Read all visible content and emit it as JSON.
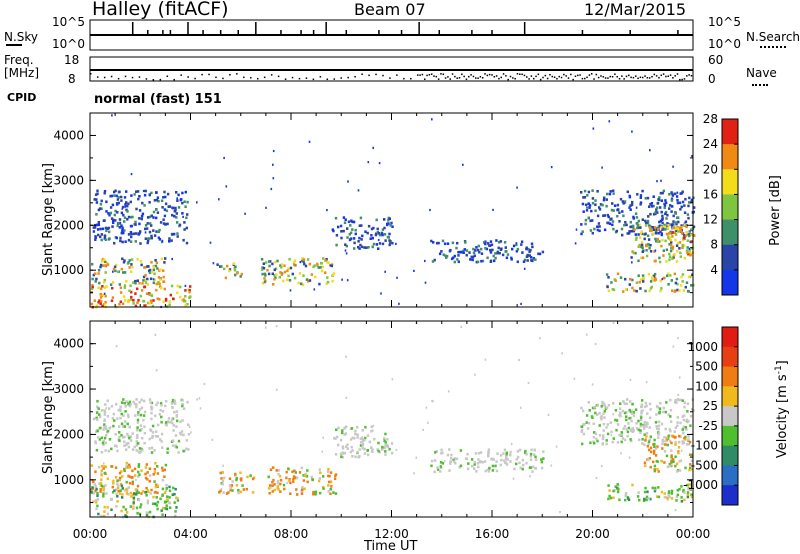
{
  "header": {
    "title": "Halley (fitACF)",
    "beam": "Beam 07",
    "date": "12/Mar/2015"
  },
  "sky_panel": {
    "left_label": "N.Sky",
    "left_ticks": [
      "10^5",
      "10^0"
    ],
    "right_label": "N.Search",
    "right_ticks": [
      "10^5",
      "10^0"
    ]
  },
  "freq_panel": {
    "left_label_1": "Freq.",
    "left_label_2": "[MHz]",
    "left_ticks": [
      "18",
      "8"
    ],
    "right_label": "Nave",
    "right_ticks": [
      "60",
      "0"
    ]
  },
  "cpid": {
    "label": "CPID",
    "value": "normal (fast) 151"
  },
  "chart_data": [
    {
      "type": "heatmap",
      "name_panel": "power",
      "xlabel": "",
      "ylabel": "Slant Range [km]",
      "xlim": [
        0,
        24
      ],
      "ylim": [
        180,
        4500
      ],
      "x_ticks": [
        "00:00",
        "04:00",
        "08:00",
        "12:00",
        "16:00",
        "20:00",
        "00:00"
      ],
      "y_ticks": [
        "1000",
        "2000",
        "3000",
        "4000"
      ],
      "y_tick_values": [
        1000,
        2000,
        3000,
        4000
      ],
      "colorbar": {
        "label": "Power [dB]",
        "ticks": [
          "4",
          "8",
          "12",
          "16",
          "20",
          "24",
          "28"
        ],
        "range": [
          0,
          30
        ],
        "colors": [
          "#1535e8",
          "#2a45a8",
          "#3f8f6a",
          "#7fc640",
          "#f2dc1c",
          "#f08a14",
          "#e02214"
        ]
      },
      "regions": [
        {
          "t0": 0.1,
          "t1": 3.9,
          "r0": 1620,
          "r1": 2800,
          "level": "low"
        },
        {
          "t0": 0.0,
          "t1": 3.0,
          "r0": 700,
          "r1": 1300,
          "level": "mid"
        },
        {
          "t0": 0.0,
          "t1": 4.0,
          "r0": 200,
          "r1": 700,
          "level": "high"
        },
        {
          "t0": 5.0,
          "t1": 6.0,
          "r0": 850,
          "r1": 1200,
          "level": "mid"
        },
        {
          "t0": 6.8,
          "t1": 9.7,
          "r0": 700,
          "r1": 1300,
          "level": "mid"
        },
        {
          "t0": 9.6,
          "t1": 12.0,
          "r0": 1500,
          "r1": 2200,
          "level": "low"
        },
        {
          "t0": 13.5,
          "t1": 18.0,
          "r0": 1200,
          "r1": 1700,
          "level": "low"
        },
        {
          "t0": 19.5,
          "t1": 24.0,
          "r0": 1800,
          "r1": 2800,
          "level": "low"
        },
        {
          "t0": 21.5,
          "t1": 24.0,
          "r0": 1200,
          "r1": 2100,
          "level": "mid"
        },
        {
          "t0": 23.0,
          "t1": 24.0,
          "r0": 1200,
          "r1": 2000,
          "level": "high"
        },
        {
          "t0": 20.5,
          "t1": 24.0,
          "r0": 550,
          "r1": 950,
          "level": "mid"
        }
      ]
    },
    {
      "type": "heatmap",
      "name_panel": "velocity",
      "xlabel": "Time UT",
      "ylabel": "Slant Range [km]",
      "xlim": [
        0,
        24
      ],
      "ylim": [
        180,
        4500
      ],
      "x_ticks": [
        "00:00",
        "04:00",
        "08:00",
        "12:00",
        "16:00",
        "20:00",
        "00:00"
      ],
      "y_ticks": [
        "1000",
        "2000",
        "3000",
        "4000"
      ],
      "y_tick_values": [
        1000,
        2000,
        3000,
        4000
      ],
      "colorbar": {
        "label": "Velocity [m s-1]",
        "label_main": "Velocity [m s",
        "label_sup": "-1",
        "label_end": "]",
        "ticks": [
          "1000",
          "500",
          "100",
          "25",
          "-25",
          "-100",
          "-500",
          "-1000"
        ],
        "range": [
          -1000,
          1000
        ],
        "colors": [
          "#1c2fc8",
          "#2a6fc4",
          "#2f8c66",
          "#4fbf2f",
          "#c8c8c8",
          "#f0b91e",
          "#f07d14",
          "#e83e14",
          "#e01c14"
        ]
      },
      "regions": [
        {
          "t0": 0.1,
          "t1": 3.9,
          "r0": 1620,
          "r1": 2800,
          "level": "grey"
        },
        {
          "t0": 0.0,
          "t1": 3.0,
          "r0": 700,
          "r1": 1400,
          "level": "orange"
        },
        {
          "t0": 0.0,
          "t1": 3.5,
          "r0": 200,
          "r1": 900,
          "level": "green"
        },
        {
          "t0": 5.0,
          "t1": 6.5,
          "r0": 700,
          "r1": 1200,
          "level": "orange"
        },
        {
          "t0": 7.0,
          "t1": 9.8,
          "r0": 700,
          "r1": 1300,
          "level": "orange"
        },
        {
          "t0": 9.6,
          "t1": 12.0,
          "r0": 1500,
          "r1": 2200,
          "level": "grey"
        },
        {
          "t0": 13.5,
          "t1": 18.0,
          "r0": 1200,
          "r1": 1700,
          "level": "grey"
        },
        {
          "t0": 19.5,
          "t1": 24.0,
          "r0": 1800,
          "r1": 2800,
          "level": "grey"
        },
        {
          "t0": 22.0,
          "t1": 24.0,
          "r0": 1200,
          "r1": 2000,
          "level": "orange"
        },
        {
          "t0": 20.5,
          "t1": 24.0,
          "r0": 550,
          "r1": 950,
          "level": "green"
        }
      ]
    }
  ]
}
